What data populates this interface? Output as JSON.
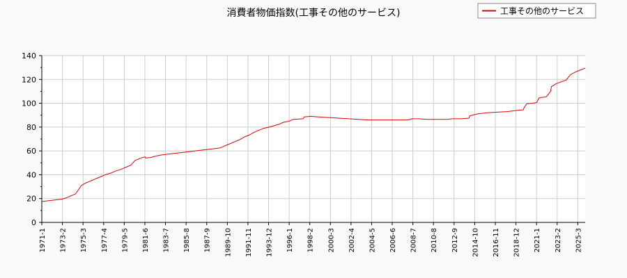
{
  "chart_data": {
    "type": "line",
    "title": "消費者物価指数(工事その他のサービス)",
    "xlabel": "",
    "ylabel": "",
    "ylim": [
      0,
      140
    ],
    "y_ticks": [
      0,
      20,
      40,
      60,
      80,
      100,
      120,
      140
    ],
    "x_range": [
      "1971-01",
      "2025-12"
    ],
    "x_tick_labels": [
      "1971-1",
      "1973-2",
      "1975-3",
      "1977-4",
      "1979-5",
      "1981-6",
      "1983-7",
      "1985-8",
      "1987-9",
      "1989-10",
      "1991-11",
      "1993-12",
      "1996-1",
      "1998-2",
      "2000-3",
      "2002-4",
      "2004-5",
      "2006-6",
      "2008-7",
      "2010-8",
      "2012-9",
      "2014-10",
      "2016-11",
      "2018-12",
      "2021-1",
      "2023-2",
      "2025-3"
    ],
    "grid": true,
    "legend_position": "top-right",
    "series": [
      {
        "name": "工事その他のサービス",
        "color": "#dd0000",
        "points": [
          [
            "1971-01",
            17.5
          ],
          [
            "1972-01",
            18.5
          ],
          [
            "1973-01",
            19.5
          ],
          [
            "1973-06",
            20.5
          ],
          [
            "1974-01",
            22.5
          ],
          [
            "1974-06",
            24.0
          ],
          [
            "1975-01",
            31.0
          ],
          [
            "1975-06",
            33.0
          ],
          [
            "1976-01",
            35.0
          ],
          [
            "1976-06",
            36.5
          ],
          [
            "1977-01",
            38.5
          ],
          [
            "1977-06",
            40.0
          ],
          [
            "1978-01",
            41.5
          ],
          [
            "1978-06",
            43.0
          ],
          [
            "1979-01",
            44.5
          ],
          [
            "1979-06",
            46.0
          ],
          [
            "1980-01",
            48.0
          ],
          [
            "1980-06",
            52.0
          ],
          [
            "1981-01",
            54.0
          ],
          [
            "1981-06",
            55.0
          ],
          [
            "1981-07",
            54.0
          ],
          [
            "1982-01",
            54.5
          ],
          [
            "1982-06",
            55.5
          ],
          [
            "1983-01",
            56.5
          ],
          [
            "1984-01",
            57.5
          ],
          [
            "1985-01",
            58.5
          ],
          [
            "1986-01",
            59.5
          ],
          [
            "1987-01",
            60.5
          ],
          [
            "1988-01",
            61.5
          ],
          [
            "1989-01",
            62.5
          ],
          [
            "1989-06",
            64.0
          ],
          [
            "1990-01",
            66.0
          ],
          [
            "1990-06",
            67.5
          ],
          [
            "1991-01",
            69.5
          ],
          [
            "1991-06",
            71.5
          ],
          [
            "1992-01",
            73.5
          ],
          [
            "1992-06",
            75.5
          ],
          [
            "1993-01",
            77.5
          ],
          [
            "1993-06",
            79.0
          ],
          [
            "1994-01",
            80.0
          ],
          [
            "1994-06",
            81.0
          ],
          [
            "1995-01",
            82.5
          ],
          [
            "1995-06",
            84.0
          ],
          [
            "1996-01",
            85.0
          ],
          [
            "1996-06",
            86.5
          ],
          [
            "1997-06",
            87.0
          ],
          [
            "1997-07",
            88.5
          ],
          [
            "1998-03",
            89.0
          ],
          [
            "1999-01",
            88.5
          ],
          [
            "2000-01",
            88.0
          ],
          [
            "2001-01",
            87.5
          ],
          [
            "2002-01",
            87.0
          ],
          [
            "2003-01",
            86.5
          ],
          [
            "2004-01",
            86.0
          ],
          [
            "2005-01",
            86.0
          ],
          [
            "2006-01",
            86.0
          ],
          [
            "2007-01",
            86.0
          ],
          [
            "2008-01",
            86.0
          ],
          [
            "2008-06",
            87.0
          ],
          [
            "2009-01",
            87.0
          ],
          [
            "2010-01",
            86.5
          ],
          [
            "2011-01",
            86.5
          ],
          [
            "2012-01",
            86.5
          ],
          [
            "2012-06",
            87.0
          ],
          [
            "2013-06",
            87.0
          ],
          [
            "2014-03",
            87.5
          ],
          [
            "2014-04",
            89.5
          ],
          [
            "2015-01",
            91.0
          ],
          [
            "2016-01",
            92.0
          ],
          [
            "2017-01",
            92.5
          ],
          [
            "2018-01",
            93.0
          ],
          [
            "2019-01",
            94.0
          ],
          [
            "2019-09",
            94.5
          ],
          [
            "2019-10",
            96.5
          ],
          [
            "2020-01",
            99.5
          ],
          [
            "2021-01",
            100.5
          ],
          [
            "2021-04",
            104.5
          ],
          [
            "2022-01",
            105.5
          ],
          [
            "2022-06",
            110.0
          ],
          [
            "2022-07",
            114.0
          ],
          [
            "2023-01",
            116.5
          ],
          [
            "2024-01",
            119.5
          ],
          [
            "2024-06",
            124.0
          ],
          [
            "2025-01",
            126.5
          ],
          [
            "2025-12",
            129.5
          ]
        ]
      }
    ]
  }
}
